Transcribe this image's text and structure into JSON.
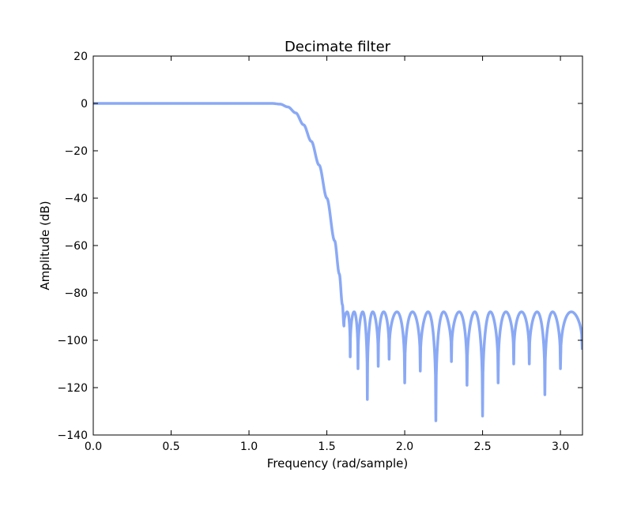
{
  "chart_data": {
    "type": "line",
    "title": "Decimate filter",
    "xlabel": "Frequency (rad/sample)",
    "ylabel": "Amplitude (dB)",
    "xlim": [
      0.0,
      3.14159
    ],
    "ylim": [
      -140,
      20
    ],
    "xticks": [
      0.0,
      0.5,
      1.0,
      1.5,
      2.0,
      2.5,
      3.0
    ],
    "xtick_labels": [
      "0.0",
      "0.5",
      "1.0",
      "1.5",
      "2.0",
      "2.5",
      "3.0"
    ],
    "yticks": [
      20,
      0,
      -20,
      -40,
      -60,
      -80,
      -100,
      -120,
      -140
    ],
    "ytick_labels": [
      "20",
      "0",
      "−20",
      "−40",
      "−60",
      "−80",
      "−100",
      "−120",
      "−140"
    ],
    "grid": false,
    "series": [
      {
        "color": "#8aa9f5",
        "passband": {
          "x": [
            0.0,
            0.5,
            1.0,
            1.15,
            1.2,
            1.25,
            1.3,
            1.35,
            1.4,
            1.45,
            1.5,
            1.55,
            1.58,
            1.6,
            1.61
          ],
          "y": [
            0,
            0,
            0,
            0,
            -0.3,
            -1.5,
            -4,
            -9,
            -16,
            -26,
            -40,
            -58,
            -72,
            -85,
            -94
          ]
        },
        "stopband_peak_db": -88,
        "stopband_nulls": {
          "x": [
            1.61,
            1.65,
            1.7,
            1.76,
            1.83,
            1.9,
            2.0,
            2.1,
            2.2,
            2.3,
            2.4,
            2.5,
            2.6,
            2.7,
            2.8,
            2.9,
            3.0,
            3.14
          ],
          "y": [
            -94,
            -107,
            -112,
            -125,
            -111,
            -108,
            -118,
            -113,
            -134,
            -109,
            -119,
            -132,
            -118,
            -110,
            -110,
            -123,
            -112,
            -104
          ]
        }
      }
    ]
  }
}
